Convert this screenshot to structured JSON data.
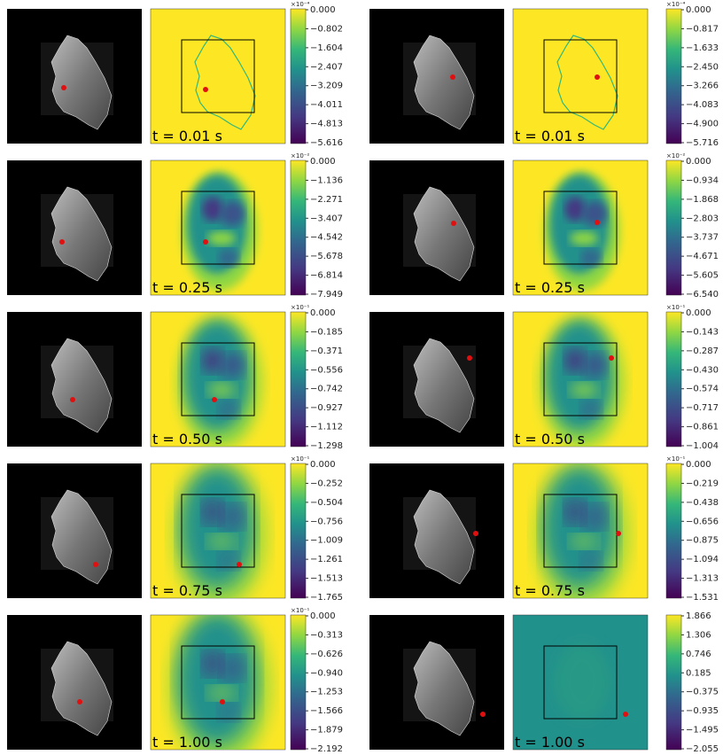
{
  "columns": [
    [
      {
        "time": "t = 0.01 s",
        "exponent": "×10⁻⁴",
        "ticks": [
          "0.000",
          "−0.802",
          "−1.604",
          "−2.407",
          "−3.209",
          "−4.011",
          "−4.813",
          "−5.616"
        ]
      },
      {
        "time": "t = 0.25 s",
        "exponent": "×10⁻²",
        "ticks": [
          "0.000",
          "−1.136",
          "−2.271",
          "−3.407",
          "−4.542",
          "−5.678",
          "−6.814",
          "−7.949"
        ]
      },
      {
        "time": "t = 0.50 s",
        "exponent": "×10⁻¹",
        "ticks": [
          "0.000",
          "−0.185",
          "−0.371",
          "−0.556",
          "−0.742",
          "−0.927",
          "−1.112",
          "−1.298"
        ]
      },
      {
        "time": "t = 0.75 s",
        "exponent": "×10⁻¹",
        "ticks": [
          "0.000",
          "−0.252",
          "−0.504",
          "−0.756",
          "−1.009",
          "−1.261",
          "−1.513",
          "−1.765"
        ]
      },
      {
        "time": "t = 1.00 s",
        "exponent": "×10⁻¹",
        "ticks": [
          "0.000",
          "−0.313",
          "−0.626",
          "−0.940",
          "−1.253",
          "−1.566",
          "−1.879",
          "−2.192"
        ]
      }
    ],
    [
      {
        "time": "t = 0.01 s",
        "exponent": "×10⁻⁴",
        "ticks": [
          "0.000",
          "−0.817",
          "−1.633",
          "−2.450",
          "−3.266",
          "−4.083",
          "−4.900",
          "−5.716"
        ]
      },
      {
        "time": "t = 0.25 s",
        "exponent": "×10⁻²",
        "ticks": [
          "0.000",
          "−0.934",
          "−1.868",
          "−2.803",
          "−3.737",
          "−4.671",
          "−5.605",
          "−6.540"
        ]
      },
      {
        "time": "t = 0.50 s",
        "exponent": "×10⁻¹",
        "ticks": [
          "0.000",
          "−0.143",
          "−0.287",
          "−0.430",
          "−0.574",
          "−0.717",
          "−0.861",
          "−1.004"
        ]
      },
      {
        "time": "t = 0.75 s",
        "exponent": "×10⁻¹",
        "ticks": [
          "0.000",
          "−0.219",
          "−0.438",
          "−0.656",
          "−0.875",
          "−1.094",
          "−1.313",
          "−1.531"
        ]
      },
      {
        "time": "t = 1.00 s",
        "ticks": [
          "1.866",
          "1.306",
          "0.746",
          "0.185",
          "−0.375",
          "−0.935",
          "−1.495",
          "−2.055"
        ]
      }
    ]
  ]
}
